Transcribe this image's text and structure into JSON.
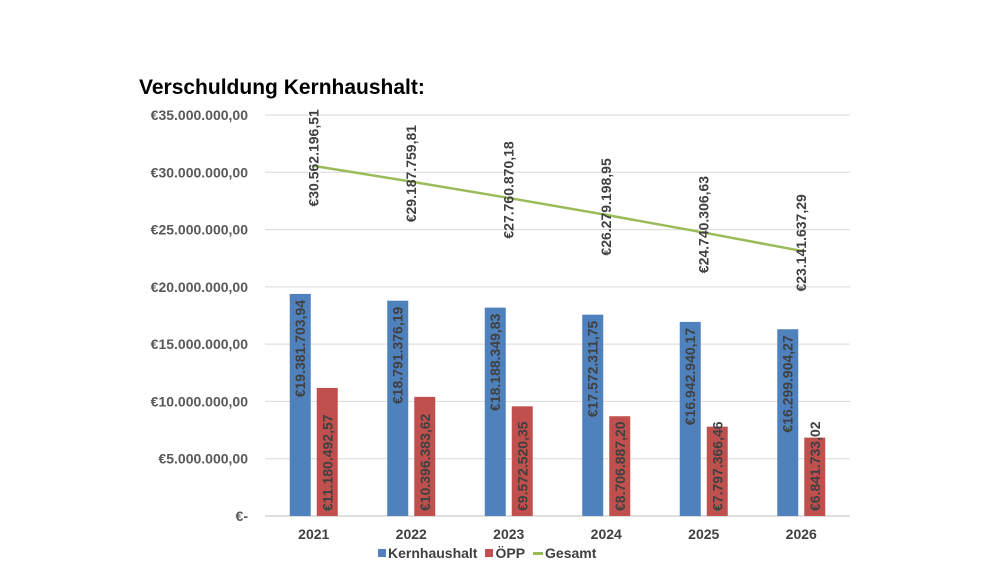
{
  "colors": {
    "kernhaushalt": "#4f81bd",
    "oepp": "#c0504d",
    "gesamt": "#9bbb59",
    "grid": "#d9d9d9"
  },
  "chart_data": {
    "type": "bar+line",
    "title": "Verschuldung Kernhaushalt:",
    "categories": [
      "2021",
      "2022",
      "2023",
      "2024",
      "2025",
      "2026"
    ],
    "ylim": [
      0,
      35000000
    ],
    "yticks": [
      0,
      5000000,
      10000000,
      15000000,
      20000000,
      25000000,
      30000000,
      35000000
    ],
    "ytick_labels": [
      "€-",
      "€5.000.000,00",
      "€10.000.000,00",
      "€15.000.000,00",
      "€20.000.000,00",
      "€25.000.000,00",
      "€30.000.000,00",
      "€35.000.000,00"
    ],
    "grid": true,
    "legend_position": "bottom",
    "series": [
      {
        "name": "Kernhaushalt",
        "kind": "bar",
        "values": [
          19381703.94,
          18791376.19,
          18188349.83,
          17572311.75,
          16942940.17,
          16299904.27
        ],
        "labels": [
          "€19.381.703,94",
          "€18.791.376,19",
          "€18.188.349,83",
          "€17.572.311,75",
          "€16.942.940,17",
          "€16.299.904,27"
        ]
      },
      {
        "name": "ÖPP",
        "kind": "bar",
        "values": [
          11180492.57,
          10396383.62,
          9572520.35,
          8706887.2,
          7797366.46,
          6841733.02
        ],
        "labels": [
          "€11.180.492,57",
          "€10.396.383,62",
          "€9.572.520,35",
          "€8.706.887,20",
          "€7.797.366,46",
          "€6.841.733,02"
        ]
      },
      {
        "name": "Gesamt",
        "kind": "line",
        "values": [
          30562196.51,
          29187759.81,
          27760870.18,
          26279198.95,
          24740306.63,
          23141637.29
        ],
        "labels": [
          "€30.562.196,51",
          "€29.187.759,81",
          "€27.760.870,18",
          "€26.279.198,95",
          "€24.740.306,63",
          "€23.141.637,29"
        ]
      }
    ]
  }
}
